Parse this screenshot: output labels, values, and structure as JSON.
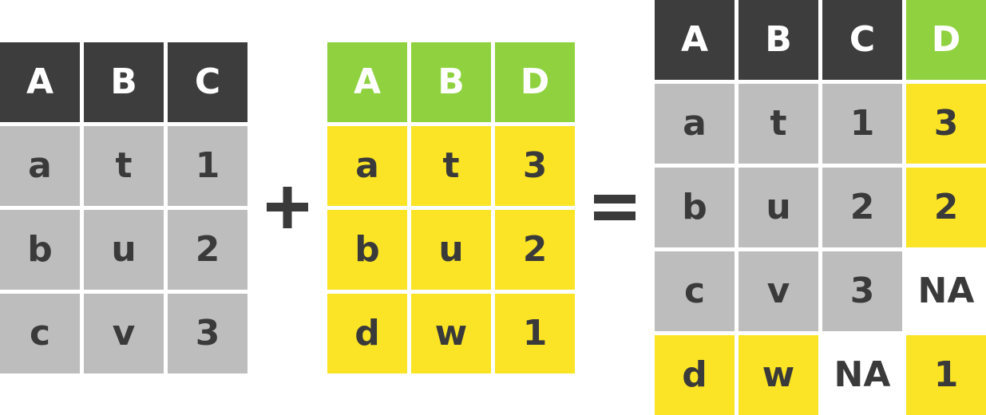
{
  "left_table": {
    "headers": [
      "A",
      "B",
      "C"
    ],
    "rows": [
      [
        "a",
        "t",
        "1"
      ],
      [
        "b",
        "u",
        "2"
      ],
      [
        "c",
        "v",
        "3"
      ]
    ]
  },
  "operator_join": "+",
  "middle_table": {
    "headers": [
      "A",
      "B",
      "D"
    ],
    "rows": [
      [
        "a",
        "t",
        "3"
      ],
      [
        "b",
        "u",
        "2"
      ],
      [
        "d",
        "w",
        "1"
      ]
    ]
  },
  "operator_result": "=",
  "result_table": {
    "headers": [
      "A",
      "B",
      "C",
      "D"
    ],
    "rows": [
      [
        "a",
        "t",
        "1",
        "3"
      ],
      [
        "b",
        "u",
        "2",
        "2"
      ],
      [
        "c",
        "v",
        "3",
        "NA"
      ],
      [
        "d",
        "w",
        "NA",
        "1"
      ]
    ]
  },
  "colors": {
    "header_dark": "#3d3d3d",
    "header_green": "#8fd13f",
    "cell_gray": "#bdbdbd",
    "cell_yellow": "#fae425",
    "text_dark": "#3a3a3a"
  }
}
